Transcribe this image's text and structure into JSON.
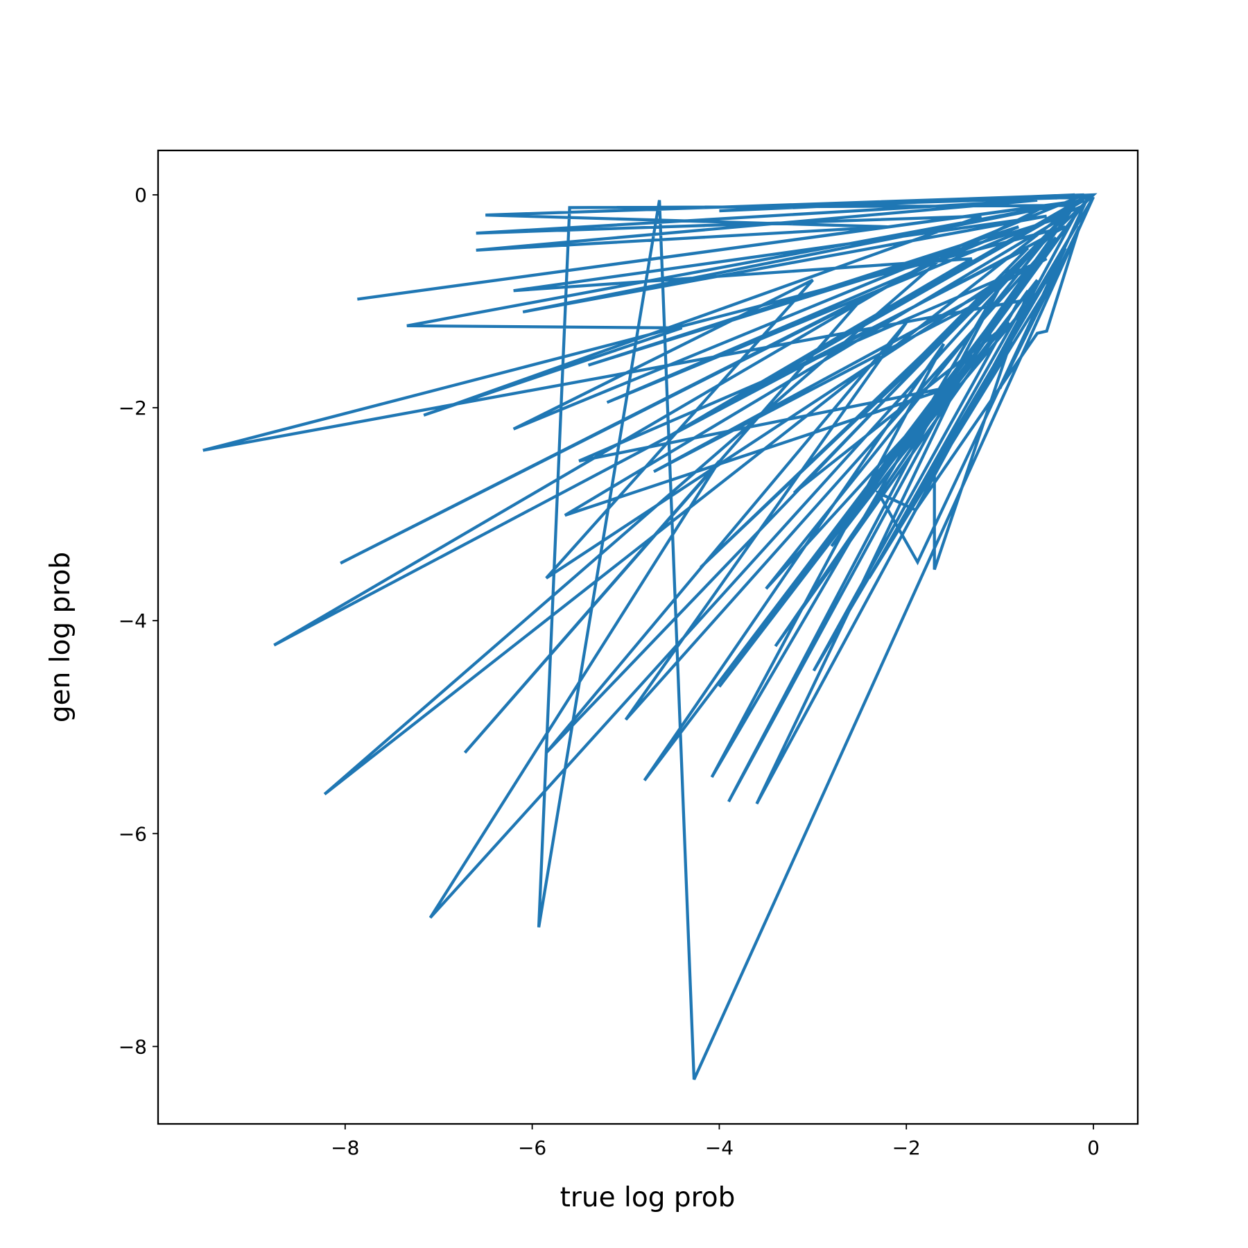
{
  "chart_data": {
    "type": "line",
    "x_label": "true log prob",
    "y_label": "gen log prob",
    "xlim": [
      -10.0,
      0.474
    ],
    "ylim": [
      -8.727,
      0.417
    ],
    "xticks": [
      {
        "value": -8,
        "label": "−8"
      },
      {
        "value": -6,
        "label": "−6"
      },
      {
        "value": -4,
        "label": "−4"
      },
      {
        "value": -2,
        "label": "−2"
      },
      0
    ],
    "yticks": [
      {
        "value": -8,
        "label": "−8"
      },
      {
        "value": -6,
        "label": "−6"
      },
      {
        "value": -4,
        "label": "−4"
      },
      {
        "value": -2,
        "label": "−2"
      },
      0
    ],
    "series": [
      {
        "color": "#1f77b4",
        "x": [
          0,
          -0.3,
          -5.6,
          -5.93,
          -4.64,
          -4.27,
          0,
          -2.99,
          -0.8,
          -9.52,
          -0.3,
          -8.76,
          -1.5,
          -8.22,
          -0.2,
          -7.09,
          -4.0,
          -6.72,
          -2.5,
          -8.05,
          -0.5,
          -7.87,
          -0.1,
          -7.34,
          -4.4,
          -7.16,
          -1.2,
          -6.6,
          -0.6,
          -6.6,
          -2.2,
          -6.5,
          -0.1,
          -6.2,
          -3.0,
          -5.85,
          -1.0,
          -5.85,
          -2.0,
          -5.0,
          -0.4,
          -4.8,
          -1.6,
          -4.08,
          -0.9,
          -3.9,
          -1.3,
          -3.6,
          -0.2,
          -4.0,
          -1.1,
          -3.4,
          -0.7,
          -1.7,
          -1.7,
          -0.3,
          -1.88,
          -2.3,
          -1.9,
          -0.6,
          -0.5,
          -0.15,
          -1.0,
          -0.1,
          -5.2,
          -0.8,
          -5.4,
          -0.3,
          -5.65,
          -1.5,
          -5.5,
          -0.5,
          -4.7,
          -1.2,
          -4.2,
          -0.4,
          -3.5,
          -0.9,
          -3.2,
          -0.2,
          -2.8,
          -0.6,
          -2.4,
          -0.3,
          -2.1,
          -0.05,
          -3.0,
          -0.2,
          -4.0,
          0,
          -2.5,
          -0.7,
          -3.8,
          -0.1,
          -6.1,
          -0.5,
          -6.2,
          -1.3,
          -4.6,
          -0.15
        ],
        "y": [
          0,
          -0.1,
          -0.12,
          -6.88,
          -0.05,
          -8.31,
          -0.02,
          -4.47,
          -1.0,
          -2.4,
          -0.3,
          -4.23,
          -0.5,
          -5.63,
          -0.1,
          -6.79,
          -2.5,
          -5.24,
          -1.0,
          -3.46,
          -0.1,
          -0.98,
          -0.05,
          -1.23,
          -1.25,
          -2.07,
          -0.2,
          -0.36,
          -0.05,
          -0.52,
          -0.3,
          -0.19,
          0,
          -2.2,
          -0.8,
          -3.6,
          -0.8,
          -5.24,
          -1.2,
          -4.93,
          -0.4,
          -5.5,
          -1.4,
          -5.47,
          -0.7,
          -5.7,
          -1.5,
          -5.72,
          -0.2,
          -4.62,
          -1.3,
          -4.24,
          -0.9,
          -3.52,
          -2.6,
          -0.5,
          -3.45,
          -2.8,
          -2.96,
          -1.3,
          -1.28,
          -0.3,
          -1.82,
          -0.1,
          -1.95,
          -0.3,
          -1.6,
          -0.2,
          -3.01,
          -1.8,
          -2.5,
          -0.6,
          -2.6,
          -1.0,
          -3.5,
          -0.3,
          -3.7,
          -1.2,
          -2.8,
          -0.1,
          -3.3,
          -0.8,
          -3.6,
          -0.6,
          -2.5,
          -0.02,
          -0.1,
          0,
          -0.15,
          0,
          -2.1,
          -0.5,
          -1.9,
          -0.05,
          -1.1,
          -0.2,
          -0.9,
          -0.6,
          -2.3,
          -0.05
        ]
      }
    ]
  }
}
